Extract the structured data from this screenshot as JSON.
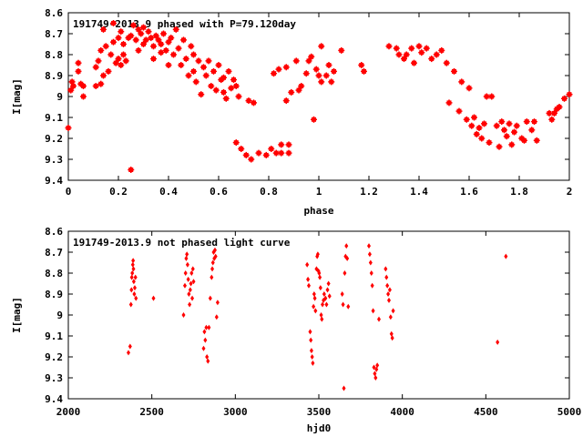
{
  "colors": {
    "points": "#ff0000",
    "axes": "#000000",
    "background": "#ffffff"
  },
  "chart_data": [
    {
      "type": "scatter",
      "title": "191749-2013.9 phased with P=79.120day",
      "xlabel": "phase",
      "ylabel": "I[mag]",
      "xlim": [
        0,
        2
      ],
      "ylim": [
        8.6,
        9.4
      ],
      "y_inverted": true,
      "marker": "star",
      "grid": false,
      "xticks": [
        "0",
        "0.2",
        "0.4",
        "0.6",
        "0.8",
        "1",
        "1.2",
        "1.4",
        "1.6",
        "1.8",
        "2"
      ],
      "yticks": [
        "8.6",
        "8.7",
        "8.8",
        "8.9",
        "9",
        "9.1",
        "9.2",
        "9.3",
        "9.4"
      ],
      "points": [
        [
          0.0,
          9.15
        ],
        [
          0.01,
          8.97
        ],
        [
          0.015,
          8.93
        ],
        [
          0.02,
          8.95
        ],
        [
          0.04,
          8.88
        ],
        [
          0.04,
          8.84
        ],
        [
          0.05,
          8.94
        ],
        [
          0.06,
          9.0
        ],
        [
          0.06,
          8.95
        ],
        [
          0.11,
          8.95
        ],
        [
          0.11,
          8.86
        ],
        [
          0.12,
          8.83
        ],
        [
          0.13,
          8.94
        ],
        [
          0.13,
          8.78
        ],
        [
          0.14,
          8.9
        ],
        [
          0.14,
          8.68
        ],
        [
          0.15,
          8.76
        ],
        [
          0.16,
          8.88
        ],
        [
          0.17,
          8.8
        ],
        [
          0.18,
          8.74
        ],
        [
          0.18,
          8.65
        ],
        [
          0.19,
          8.84
        ],
        [
          0.2,
          8.82
        ],
        [
          0.2,
          8.72
        ],
        [
          0.21,
          8.85
        ],
        [
          0.21,
          8.69
        ],
        [
          0.22,
          8.8
        ],
        [
          0.22,
          8.75
        ],
        [
          0.23,
          8.83
        ],
        [
          0.24,
          8.72
        ],
        [
          0.25,
          8.71
        ],
        [
          0.25,
          9.35
        ],
        [
          0.26,
          8.66
        ],
        [
          0.27,
          8.73
        ],
        [
          0.28,
          8.68
        ],
        [
          0.28,
          8.78
        ],
        [
          0.29,
          8.7
        ],
        [
          0.3,
          8.67
        ],
        [
          0.3,
          8.75
        ],
        [
          0.31,
          8.73
        ],
        [
          0.32,
          8.69
        ],
        [
          0.33,
          8.72
        ],
        [
          0.34,
          8.76
        ],
        [
          0.34,
          8.82
        ],
        [
          0.35,
          8.71
        ],
        [
          0.36,
          8.73
        ],
        [
          0.37,
          8.75
        ],
        [
          0.37,
          8.79
        ],
        [
          0.38,
          8.7
        ],
        [
          0.39,
          8.78
        ],
        [
          0.4,
          8.74
        ],
        [
          0.4,
          8.85
        ],
        [
          0.41,
          8.72
        ],
        [
          0.42,
          8.8
        ],
        [
          0.43,
          8.68
        ],
        [
          0.44,
          8.77
        ],
        [
          0.45,
          8.85
        ],
        [
          0.46,
          8.73
        ],
        [
          0.47,
          8.82
        ],
        [
          0.48,
          8.9
        ],
        [
          0.49,
          8.76
        ],
        [
          0.5,
          8.88
        ],
        [
          0.5,
          8.8
        ],
        [
          0.51,
          8.93
        ],
        [
          0.52,
          8.83
        ],
        [
          0.53,
          8.99
        ],
        [
          0.54,
          8.86
        ],
        [
          0.55,
          8.9
        ],
        [
          0.56,
          8.83
        ],
        [
          0.57,
          8.95
        ],
        [
          0.58,
          8.88
        ],
        [
          0.59,
          8.97
        ],
        [
          0.6,
          8.85
        ],
        [
          0.61,
          8.92
        ],
        [
          0.62,
          8.98
        ],
        [
          0.62,
          8.91
        ],
        [
          0.63,
          9.01
        ],
        [
          0.64,
          8.88
        ],
        [
          0.65,
          8.96
        ],
        [
          0.66,
          8.92
        ],
        [
          0.67,
          8.95
        ],
        [
          0.67,
          9.22
        ],
        [
          0.68,
          9.0
        ],
        [
          0.69,
          9.25
        ],
        [
          0.71,
          9.28
        ],
        [
          0.72,
          9.02
        ],
        [
          0.73,
          9.3
        ],
        [
          0.74,
          9.03
        ],
        [
          0.76,
          9.27
        ],
        [
          0.79,
          9.28
        ],
        [
          0.81,
          9.25
        ],
        [
          0.82,
          8.89
        ],
        [
          0.83,
          9.27
        ],
        [
          0.84,
          8.87
        ],
        [
          0.85,
          9.23
        ],
        [
          0.85,
          9.27
        ],
        [
          0.87,
          8.86
        ],
        [
          0.87,
          9.02
        ],
        [
          0.88,
          9.23
        ],
        [
          0.88,
          9.27
        ],
        [
          0.89,
          8.98
        ],
        [
          0.91,
          8.83
        ],
        [
          0.92,
          8.97
        ],
        [
          0.93,
          8.95
        ],
        [
          0.95,
          8.89
        ],
        [
          0.96,
          8.83
        ],
        [
          0.97,
          8.81
        ],
        [
          0.98,
          9.11
        ],
        [
          0.99,
          8.87
        ],
        [
          1.0,
          8.9
        ],
        [
          1.01,
          8.93
        ],
        [
          1.01,
          8.76
        ],
        [
          1.03,
          8.9
        ],
        [
          1.04,
          8.85
        ],
        [
          1.05,
          8.93
        ],
        [
          1.06,
          8.88
        ],
        [
          1.09,
          8.78
        ],
        [
          1.17,
          8.85
        ],
        [
          1.18,
          8.88
        ],
        [
          1.28,
          8.76
        ],
        [
          1.31,
          8.77
        ],
        [
          1.32,
          8.8
        ],
        [
          1.34,
          8.82
        ],
        [
          1.35,
          8.8
        ],
        [
          1.37,
          8.77
        ],
        [
          1.38,
          8.84
        ],
        [
          1.4,
          8.76
        ],
        [
          1.41,
          8.79
        ],
        [
          1.43,
          8.77
        ],
        [
          1.45,
          8.82
        ],
        [
          1.47,
          8.8
        ],
        [
          1.49,
          8.78
        ],
        [
          1.51,
          8.84
        ],
        [
          1.52,
          9.03
        ],
        [
          1.54,
          8.88
        ],
        [
          1.56,
          9.07
        ],
        [
          1.57,
          8.93
        ],
        [
          1.59,
          9.11
        ],
        [
          1.6,
          8.96
        ],
        [
          1.61,
          9.14
        ],
        [
          1.62,
          9.1
        ],
        [
          1.63,
          9.18
        ],
        [
          1.64,
          9.15
        ],
        [
          1.65,
          9.2
        ],
        [
          1.66,
          9.13
        ],
        [
          1.67,
          9.0
        ],
        [
          1.68,
          9.22
        ],
        [
          1.69,
          9.0
        ],
        [
          1.71,
          9.14
        ],
        [
          1.72,
          9.24
        ],
        [
          1.73,
          9.12
        ],
        [
          1.74,
          9.16
        ],
        [
          1.75,
          9.19
        ],
        [
          1.76,
          9.13
        ],
        [
          1.77,
          9.23
        ],
        [
          1.78,
          9.17
        ],
        [
          1.79,
          9.14
        ],
        [
          1.81,
          9.2
        ],
        [
          1.82,
          9.21
        ],
        [
          1.83,
          9.12
        ],
        [
          1.85,
          9.16
        ],
        [
          1.86,
          9.12
        ],
        [
          1.87,
          9.21
        ],
        [
          1.92,
          9.08
        ],
        [
          1.93,
          9.11
        ],
        [
          1.94,
          9.08
        ],
        [
          1.95,
          9.06
        ],
        [
          1.96,
          9.05
        ],
        [
          1.98,
          9.01
        ],
        [
          2.0,
          8.99
        ]
      ]
    },
    {
      "type": "scatter",
      "title": "191749-2013.9 not phased light curve",
      "xlabel": "hjd0",
      "ylabel": "I[mag]",
      "xlim": [
        2000,
        5000
      ],
      "ylim": [
        8.6,
        9.4
      ],
      "y_inverted": true,
      "marker": "diamond",
      "grid": false,
      "xticks": [
        "2000",
        "2500",
        "3000",
        "3500",
        "4000",
        "4500",
        "5000"
      ],
      "yticks": [
        "8.6",
        "8.7",
        "8.8",
        "8.9",
        "9",
        "9.1",
        "9.2",
        "9.3",
        "9.4"
      ],
      "points": [
        [
          2360,
          9.18
        ],
        [
          2370,
          9.15
        ],
        [
          2375,
          8.95
        ],
        [
          2378,
          8.88
        ],
        [
          2380,
          8.82
        ],
        [
          2383,
          8.8
        ],
        [
          2386,
          8.76
        ],
        [
          2388,
          8.74
        ],
        [
          2390,
          8.78
        ],
        [
          2392,
          8.84
        ],
        [
          2395,
          8.9
        ],
        [
          2398,
          8.87
        ],
        [
          2402,
          8.82
        ],
        [
          2405,
          8.92
        ],
        [
          2510,
          8.92
        ],
        [
          2690,
          9.0
        ],
        [
          2698,
          8.86
        ],
        [
          2702,
          8.8
        ],
        [
          2706,
          8.73
        ],
        [
          2710,
          8.71
        ],
        [
          2714,
          8.76
        ],
        [
          2718,
          8.83
        ],
        [
          2722,
          8.9
        ],
        [
          2726,
          8.95
        ],
        [
          2730,
          8.88
        ],
        [
          2734,
          8.85
        ],
        [
          2738,
          8.8
        ],
        [
          2742,
          8.92
        ],
        [
          2746,
          8.78
        ],
        [
          2750,
          8.84
        ],
        [
          2810,
          9.16
        ],
        [
          2815,
          9.08
        ],
        [
          2820,
          9.12
        ],
        [
          2826,
          9.06
        ],
        [
          2830,
          9.2
        ],
        [
          2836,
          9.22
        ],
        [
          2842,
          9.06
        ],
        [
          2850,
          8.92
        ],
        [
          2858,
          8.82
        ],
        [
          2862,
          8.78
        ],
        [
          2866,
          8.75
        ],
        [
          2870,
          8.7
        ],
        [
          2874,
          8.73
        ],
        [
          2878,
          8.69
        ],
        [
          2882,
          8.72
        ],
        [
          2888,
          9.01
        ],
        [
          2894,
          8.94
        ],
        [
          3430,
          8.76
        ],
        [
          3435,
          8.83
        ],
        [
          3440,
          8.86
        ],
        [
          3448,
          9.08
        ],
        [
          3452,
          9.12
        ],
        [
          3456,
          9.17
        ],
        [
          3460,
          9.2
        ],
        [
          3464,
          9.23
        ],
        [
          3468,
          8.96
        ],
        [
          3472,
          8.9
        ],
        [
          3476,
          8.92
        ],
        [
          3480,
          8.98
        ],
        [
          3486,
          8.78
        ],
        [
          3490,
          8.72
        ],
        [
          3494,
          8.71
        ],
        [
          3498,
          8.79
        ],
        [
          3502,
          8.8
        ],
        [
          3506,
          8.82
        ],
        [
          3510,
          8.87
        ],
        [
          3514,
          9.0
        ],
        [
          3518,
          9.02
        ],
        [
          3522,
          8.95
        ],
        [
          3528,
          8.93
        ],
        [
          3532,
          8.9
        ],
        [
          3540,
          8.92
        ],
        [
          3546,
          8.95
        ],
        [
          3552,
          8.88
        ],
        [
          3558,
          8.85
        ],
        [
          3564,
          8.91
        ],
        [
          3640,
          8.9
        ],
        [
          3645,
          8.95
        ],
        [
          3650,
          9.35
        ],
        [
          3655,
          8.8
        ],
        [
          3660,
          8.72
        ],
        [
          3665,
          8.67
        ],
        [
          3670,
          8.73
        ],
        [
          3676,
          8.96
        ],
        [
          3800,
          8.67
        ],
        [
          3805,
          8.71
        ],
        [
          3810,
          8.75
        ],
        [
          3815,
          8.8
        ],
        [
          3820,
          8.86
        ],
        [
          3825,
          8.98
        ],
        [
          3830,
          9.25
        ],
        [
          3835,
          9.28
        ],
        [
          3840,
          9.3
        ],
        [
          3845,
          9.26
        ],
        [
          3850,
          9.24
        ],
        [
          3860,
          9.02
        ],
        [
          3900,
          8.78
        ],
        [
          3905,
          8.82
        ],
        [
          3910,
          8.86
        ],
        [
          3915,
          8.9
        ],
        [
          3920,
          8.93
        ],
        [
          3925,
          8.88
        ],
        [
          3930,
          9.01
        ],
        [
          3935,
          9.09
        ],
        [
          3940,
          9.11
        ],
        [
          3945,
          8.98
        ],
        [
          4570,
          9.13
        ],
        [
          4620,
          8.72
        ]
      ]
    }
  ]
}
